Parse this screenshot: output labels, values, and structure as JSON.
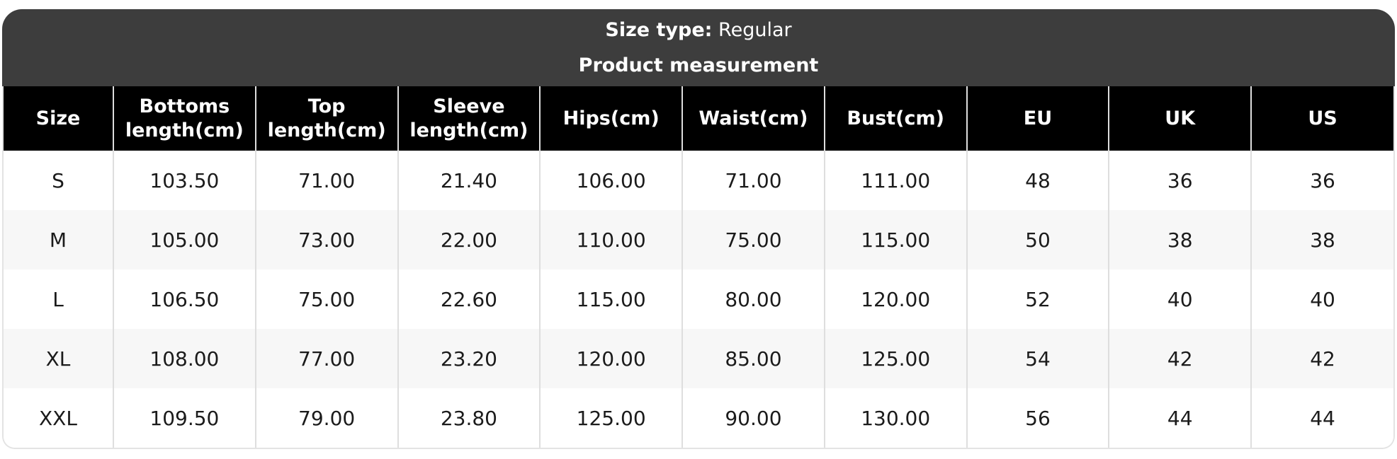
{
  "banner": {
    "size_type_label": "Size type:",
    "size_type_value": "Regular",
    "subtitle": "Product measurement"
  },
  "table": {
    "columns": [
      "Size",
      "Bottoms length(cm)",
      "Top length(cm)",
      "Sleeve length(cm)",
      "Hips(cm)",
      "Waist(cm)",
      "Bust(cm)",
      "EU",
      "UK",
      "US"
    ],
    "rows": [
      [
        "S",
        "103.50",
        "71.00",
        "21.40",
        "106.00",
        "71.00",
        "111.00",
        "48",
        "36",
        "36"
      ],
      [
        "M",
        "105.00",
        "73.00",
        "22.00",
        "110.00",
        "75.00",
        "115.00",
        "50",
        "38",
        "38"
      ],
      [
        "L",
        "106.50",
        "75.00",
        "22.60",
        "115.00",
        "80.00",
        "120.00",
        "52",
        "40",
        "40"
      ],
      [
        "XL",
        "108.00",
        "77.00",
        "23.20",
        "120.00",
        "85.00",
        "125.00",
        "54",
        "42",
        "42"
      ],
      [
        "XXL",
        "109.50",
        "79.00",
        "23.80",
        "125.00",
        "90.00",
        "130.00",
        "56",
        "44",
        "44"
      ]
    ]
  },
  "colors": {
    "banner_bg": "#3d3d3d",
    "header_bg": "#000000",
    "stripe_bg": "#f7f7f7",
    "border": "#dedede"
  }
}
